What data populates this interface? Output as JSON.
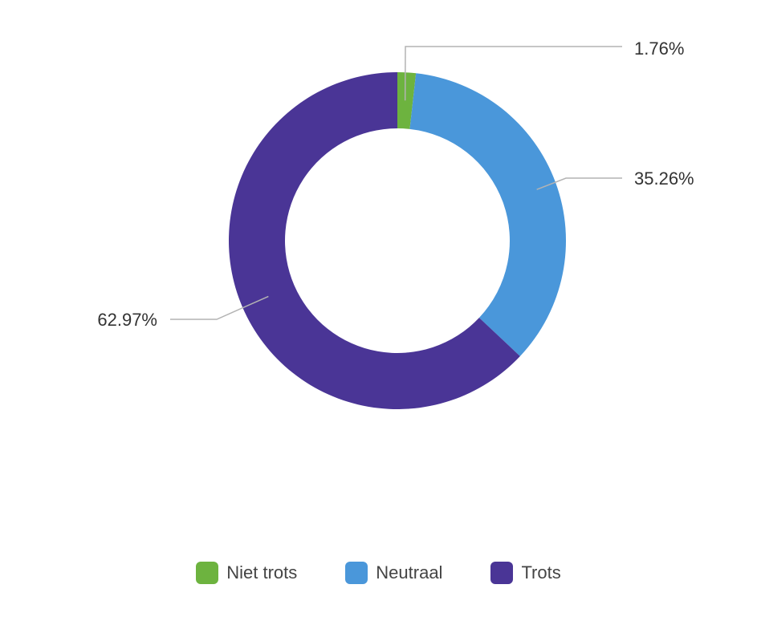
{
  "chart_data": {
    "type": "pie",
    "variant": "donut",
    "categories": [
      "Niet trots",
      "Neutraal",
      "Trots"
    ],
    "values": [
      1.76,
      35.26,
      62.97
    ],
    "labels": [
      "1.76%",
      "35.26%",
      "62.97%"
    ],
    "colors": [
      "#6DB33F",
      "#4A97DA",
      "#4A3596"
    ],
    "legend_position": "bottom"
  }
}
